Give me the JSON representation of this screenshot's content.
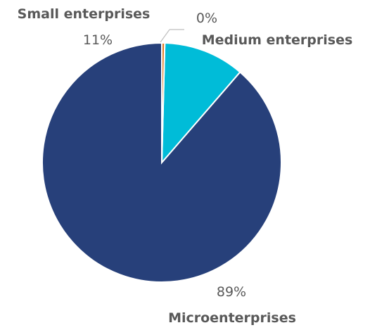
{
  "chart_data": {
    "type": "pie",
    "title": "",
    "slices": [
      {
        "name": "Microenterprises",
        "value": 89,
        "label": "89%",
        "color": "#27407a"
      },
      {
        "name": "Small enterprises",
        "value": 11,
        "label": "11%",
        "color": "#00bcd8"
      },
      {
        "name": "Medium enterprises",
        "value": 0.4,
        "label": "0%",
        "color": "#e07b24"
      }
    ],
    "start": "12 o'clock",
    "direction": "counter-clockwise",
    "legend": "none (category labels next to slices)"
  }
}
